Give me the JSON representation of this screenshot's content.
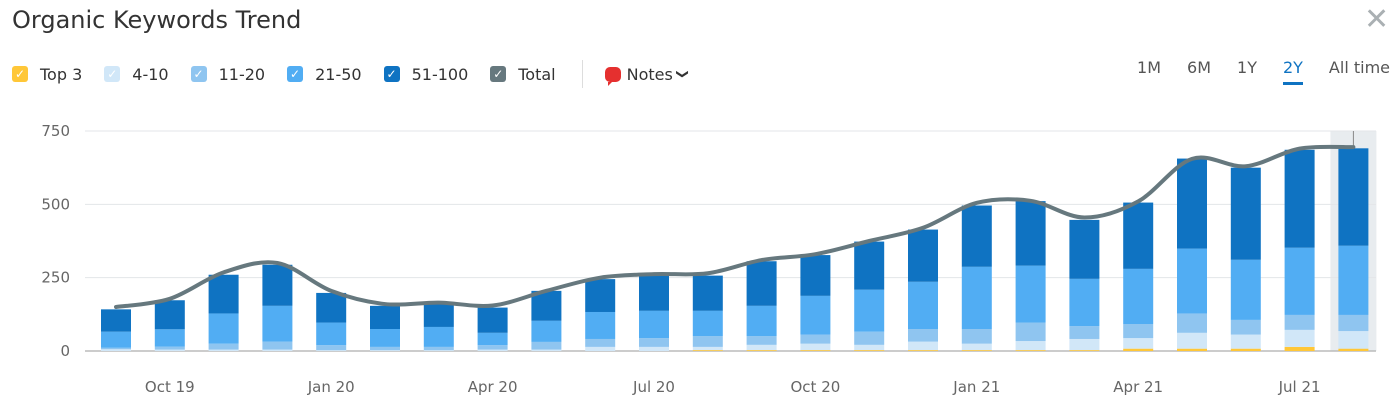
{
  "header": {
    "title": "Organic Keywords Trend",
    "close_icon": "close-icon"
  },
  "legend": [
    {
      "label": "Top 3",
      "color": "#ffc738"
    },
    {
      "label": "4-10",
      "color": "#d1e7f8"
    },
    {
      "label": "11-20",
      "color": "#8fc5f0"
    },
    {
      "label": "21-50",
      "color": "#51adf3"
    },
    {
      "label": "51-100",
      "color": "#0f73c2"
    },
    {
      "label": "Total",
      "color": "#66787e"
    }
  ],
  "notes": {
    "label": "Notes",
    "icon": "speech-bubble-icon"
  },
  "ranges": [
    {
      "label": "1M"
    },
    {
      "label": "6M"
    },
    {
      "label": "1Y"
    },
    {
      "label": "2Y",
      "active": true
    },
    {
      "label": "All time"
    }
  ],
  "chart_data": {
    "type": "bar",
    "stacked": true,
    "title": "Organic Keywords Trend",
    "ylim": [
      0,
      750
    ],
    "yticks": [
      "750",
      "500",
      "250",
      "0"
    ],
    "ytick_values": [
      750,
      500,
      250,
      0
    ],
    "xticks": [
      {
        "label": "Oct 19",
        "index": 1
      },
      {
        "label": "Jan 20",
        "index": 4
      },
      {
        "label": "Apr 20",
        "index": 7
      },
      {
        "label": "Jul 20",
        "index": 10
      },
      {
        "label": "Oct 20",
        "index": 13
      },
      {
        "label": "Jan 21",
        "index": 16
      },
      {
        "label": "Apr 21",
        "index": 19
      },
      {
        "label": "Jul 21",
        "index": 22
      }
    ],
    "highlighted_index": 23,
    "series": [
      {
        "name": "Top 3",
        "color": "#ffc738",
        "values": [
          0,
          0,
          0,
          0,
          0,
          0,
          0,
          0,
          0,
          0,
          0,
          3,
          3,
          3,
          3,
          3,
          3,
          3,
          3,
          8,
          8,
          8,
          14,
          8
        ]
      },
      {
        "name": "4-10",
        "color": "#d1e7f8",
        "values": [
          6,
          5,
          5,
          5,
          3,
          3,
          3,
          5,
          5,
          14,
          14,
          11,
          18,
          22,
          18,
          29,
          22,
          31,
          38,
          36,
          54,
          48,
          58,
          60
        ]
      },
      {
        "name": "11-20",
        "color": "#8fc5f0",
        "values": [
          5,
          10,
          20,
          27,
          17,
          11,
          11,
          15,
          26,
          27,
          30,
          37,
          30,
          31,
          45,
          43,
          50,
          63,
          44,
          48,
          66,
          50,
          51,
          55
        ]
      },
      {
        "name": "21-50",
        "color": "#51adf3",
        "values": [
          55,
          59,
          103,
          122,
          77,
          61,
          68,
          42,
          72,
          92,
          93,
          86,
          103,
          132,
          143,
          161,
          212,
          194,
          161,
          188,
          221,
          205,
          229,
          236
        ]
      },
      {
        "name": "51-100",
        "color": "#0f73c2",
        "values": [
          76,
          99,
          132,
          140,
          101,
          79,
          80,
          86,
          102,
          112,
          120,
          120,
          152,
          139,
          164,
          178,
          209,
          220,
          201,
          226,
          307,
          314,
          334,
          332
        ]
      }
    ],
    "total": {
      "name": "Total",
      "color": "#66787e",
      "values": [
        150,
        178,
        268,
        300,
        205,
        160,
        165,
        155,
        205,
        250,
        262,
        265,
        310,
        330,
        375,
        420,
        505,
        512,
        455,
        510,
        655,
        630,
        690,
        695
      ]
    }
  }
}
